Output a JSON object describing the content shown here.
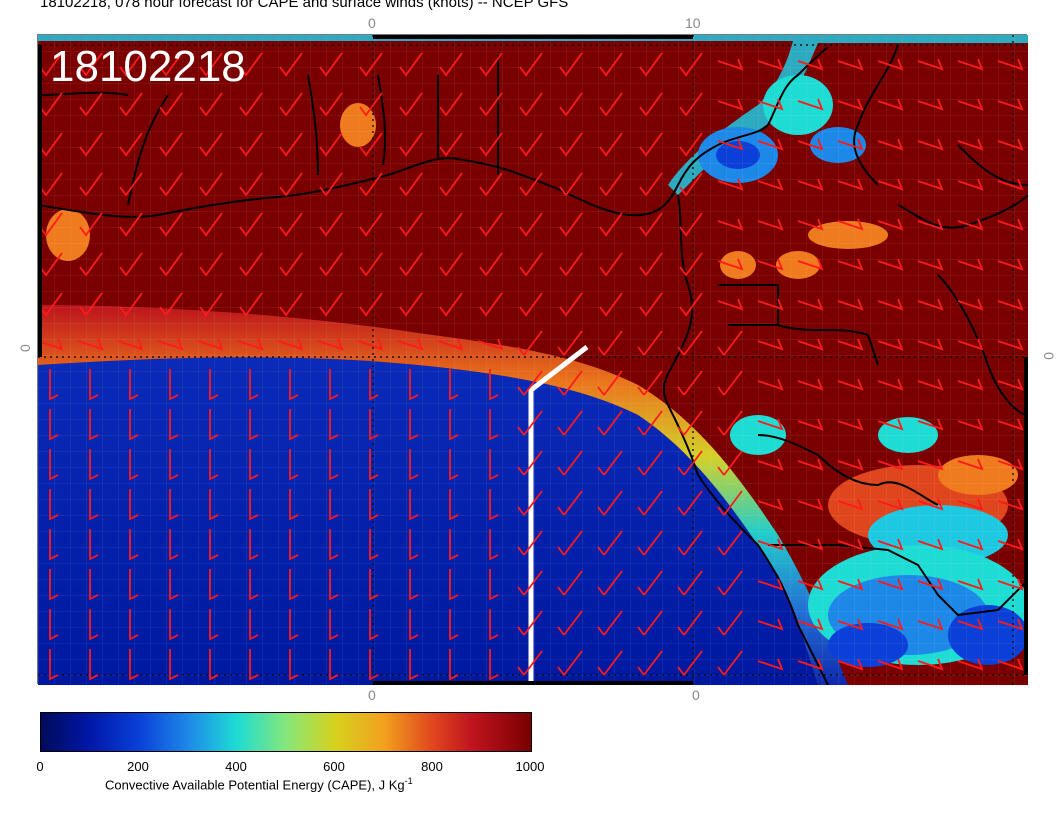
{
  "title": "18102218, 078 hour forecast for CAPE and surface winds (knots) -- NCEP GFS",
  "stamp": "18102218",
  "axis_labels": {
    "top_left": "0",
    "top_right": "10",
    "bottom_left": "0",
    "bottom_right": "0",
    "left": "0",
    "right": "0"
  },
  "colorbar": {
    "label": "Convective Available Potential Energy (CAPE), J Kg",
    "label_superscript": "-1",
    "ticks": [
      "0",
      "200",
      "400",
      "600",
      "800",
      "1000"
    ],
    "min": 0,
    "max": 1000
  },
  "colors": {
    "high_cape": "#7a0000",
    "low_cape": "#0018a8",
    "barb": "#ff1a1a",
    "coast": "#000000",
    "track": "#ffffff"
  }
}
